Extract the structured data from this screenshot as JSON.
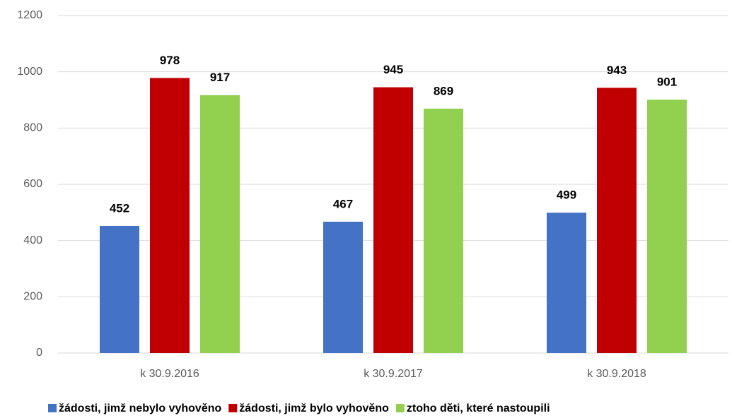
{
  "chart_data": {
    "type": "bar",
    "categories": [
      "k 30.9.2016",
      "k 30.9.2017",
      "k 30.9.2018"
    ],
    "series": [
      {
        "name": "žádosti, jimž nebylo vyhověno",
        "color": "#4472c4",
        "values": [
          452,
          467,
          499
        ]
      },
      {
        "name": "žádosti, jimž bylo vyhověno",
        "color": "#c00000",
        "values": [
          978,
          945,
          943
        ]
      },
      {
        "name": "ztoho děti, které nastoupili",
        "color": "#92d050",
        "values": [
          917,
          869,
          901
        ]
      }
    ],
    "ylim": [
      0,
      1200
    ],
    "yticks": [
      0,
      200,
      400,
      600,
      800,
      1000,
      1200
    ],
    "grid": true,
    "legend": "bottom"
  }
}
